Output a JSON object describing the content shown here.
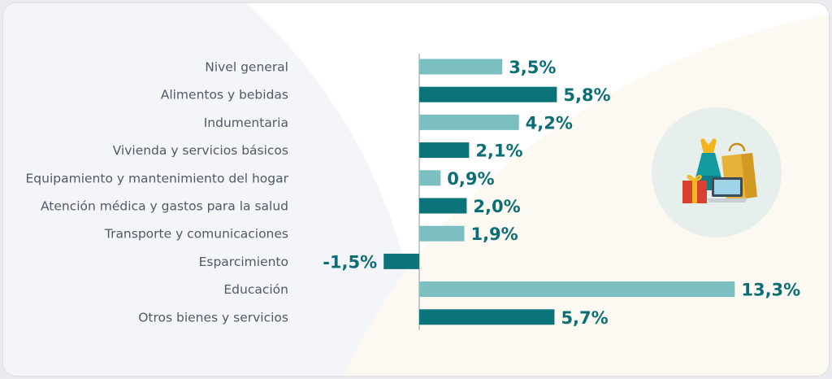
{
  "chart_data": {
    "type": "bar",
    "orientation": "horizontal",
    "title": "",
    "xlabel": "",
    "ylabel": "",
    "categories": [
      "Nivel general",
      "Alimentos y bebidas",
      "Indumentaria",
      "Vivienda y servicios básicos",
      "Equipamiento y mantenimiento del hogar",
      "Atención médica y gastos para la salud",
      "Transporte y comunicaciones",
      "Esparcimiento",
      "Educación",
      "Otros bienes y servicios"
    ],
    "values": [
      3.5,
      5.8,
      4.2,
      2.1,
      0.9,
      2.0,
      1.9,
      -1.5,
      13.3,
      5.7
    ],
    "value_labels": [
      "3,5%",
      "5,8%",
      "4,2%",
      "2,1%",
      "0,9%",
      "2,0%",
      "1,9%",
      "-1,5%",
      "13,3%",
      "5,7%"
    ],
    "xlim": [
      -1.5,
      13.3
    ],
    "grid": false,
    "legend": "none",
    "colors": {
      "light": "#7bbfc1",
      "dark": "#0b747a",
      "label": "#0b6e74"
    },
    "bar_color_pattern": [
      "light",
      "dark"
    ]
  },
  "illustration": {
    "icons": [
      "dress-icon",
      "shopping-bag-icon",
      "gift-box-icon",
      "laptop-icon"
    ],
    "circle_color": "#e6efec"
  }
}
